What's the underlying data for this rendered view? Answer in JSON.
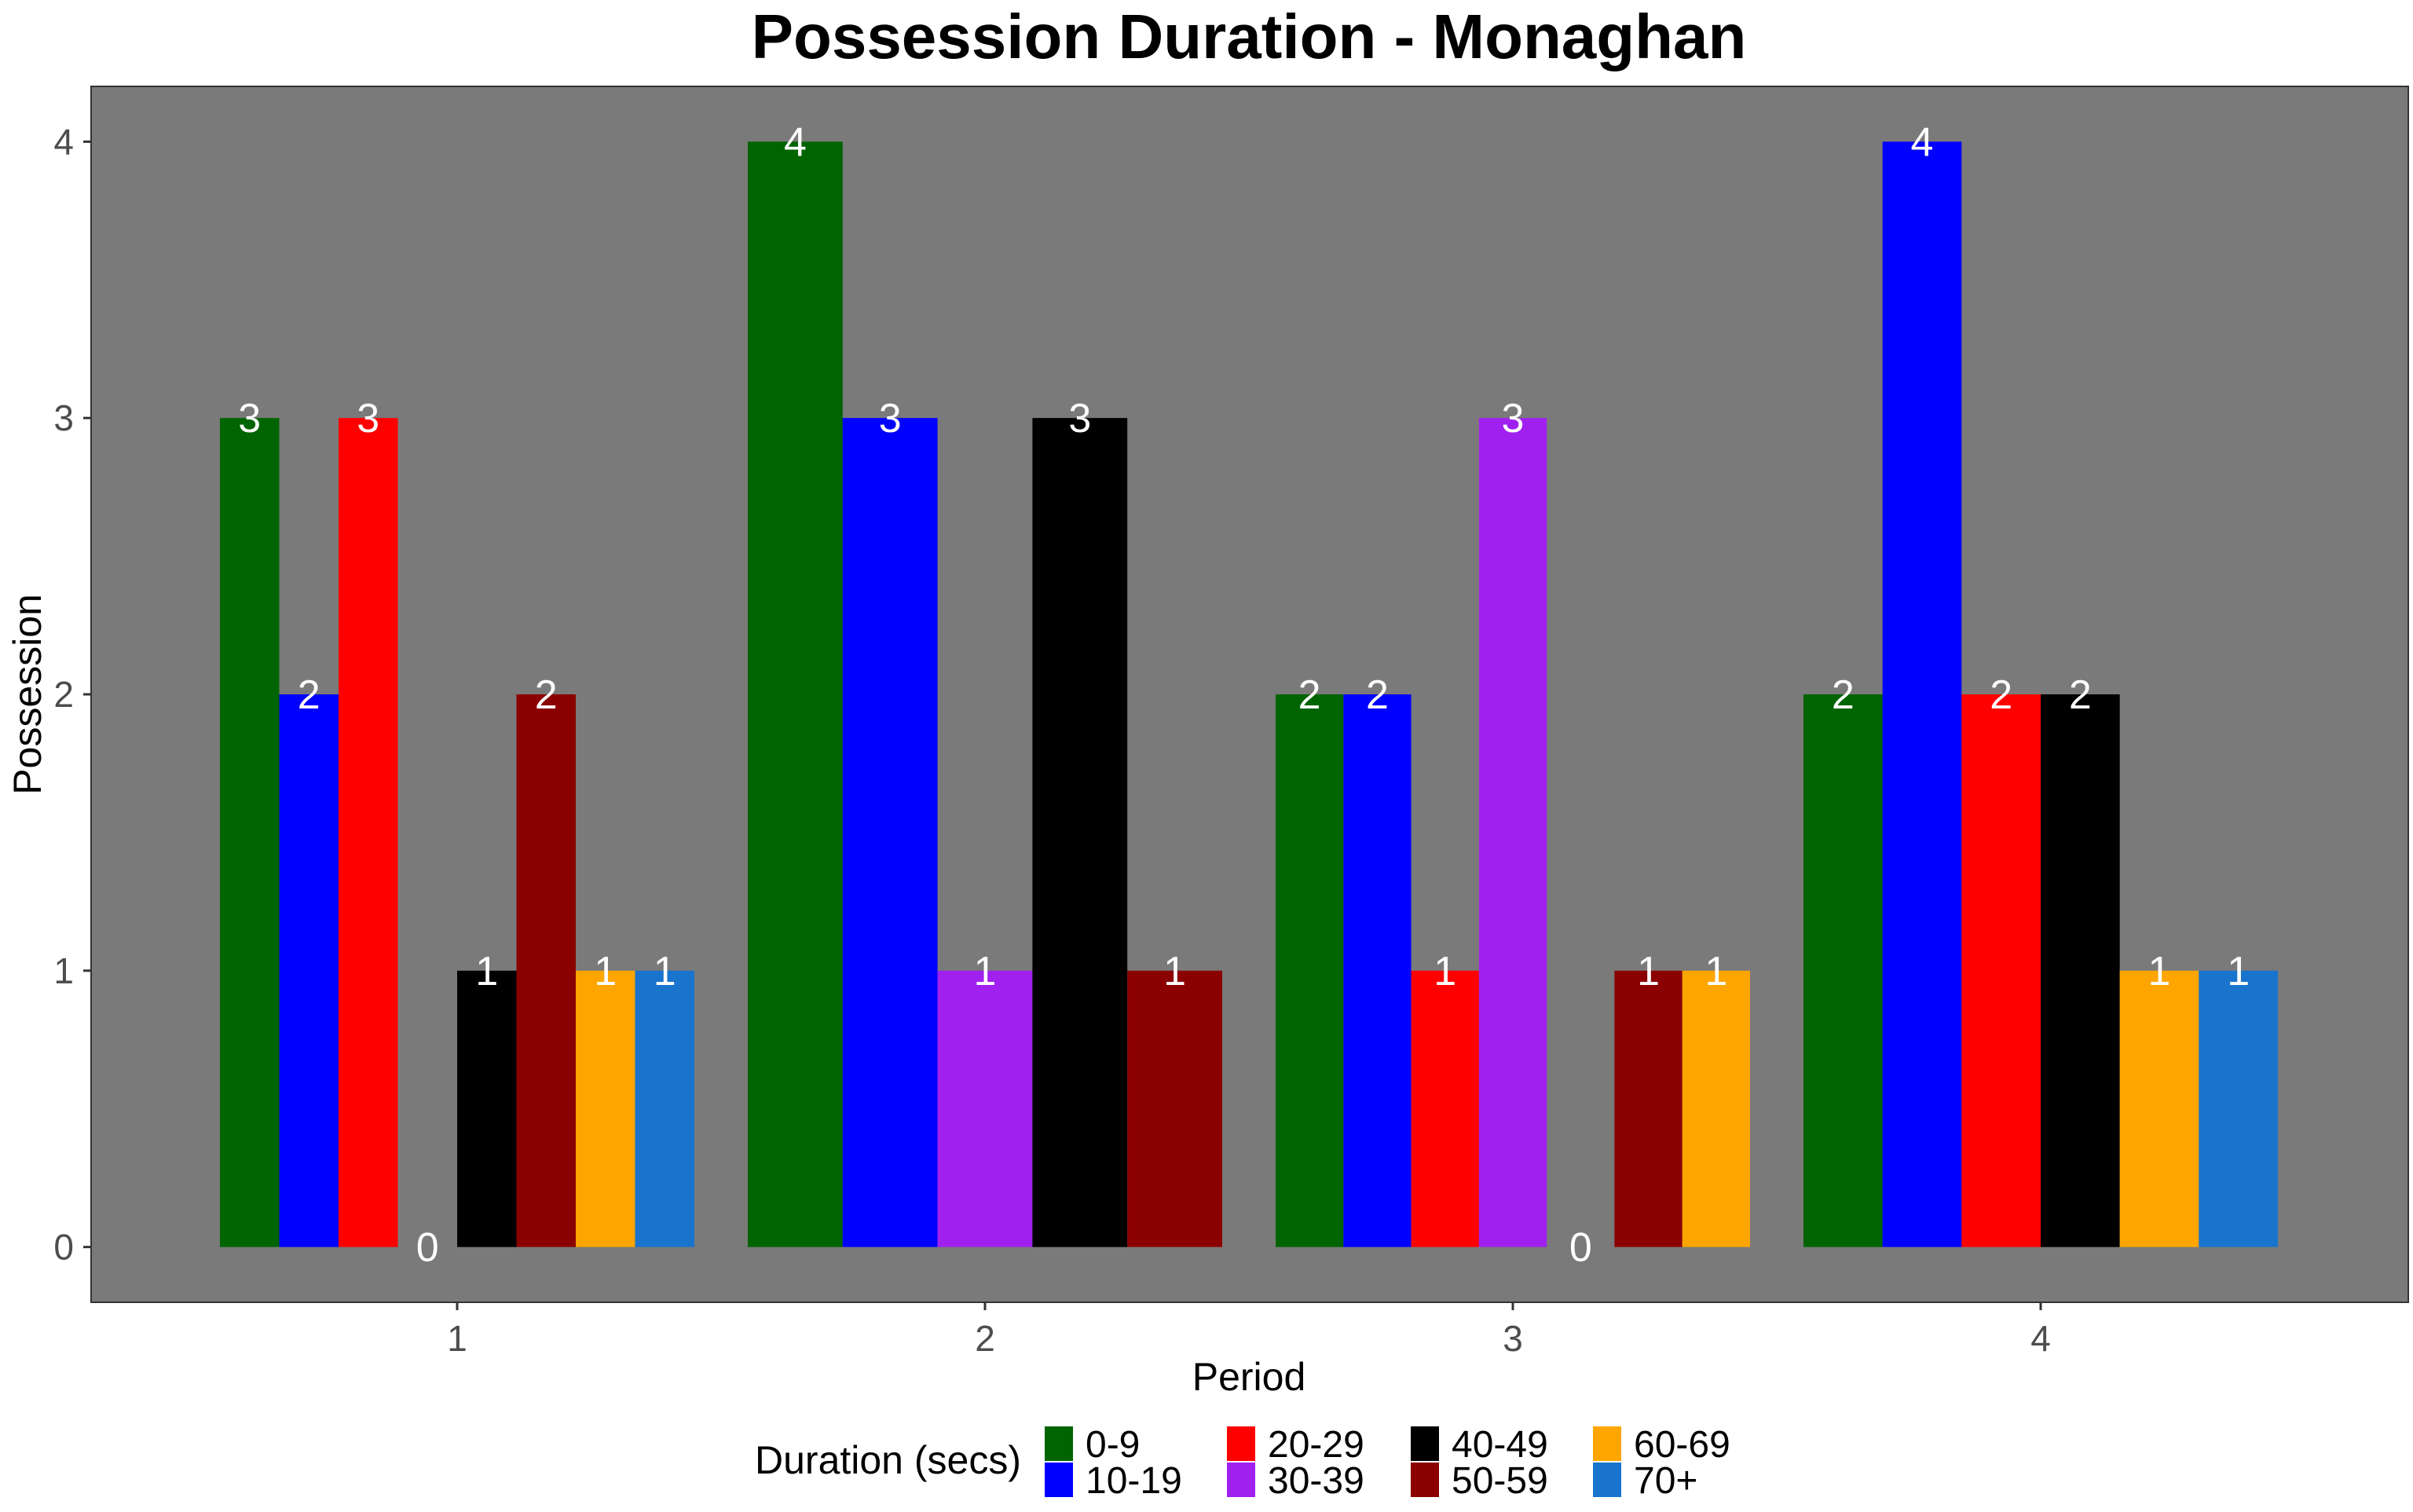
{
  "chart_data": {
    "type": "bar",
    "title": "Possession Duration - Monaghan",
    "xlabel": "Period",
    "ylabel": "Possession",
    "ylim": [
      -0.2,
      4.2
    ],
    "y_ticks": [
      0,
      1,
      2,
      3,
      4
    ],
    "grid": false,
    "legend_position": "bottom",
    "legend_title": "Duration (secs)",
    "categories": [
      "1",
      "2",
      "3",
      "4"
    ],
    "series": [
      {
        "name": "0-9",
        "color": "#006400",
        "values": [
          3,
          4,
          2,
          2
        ]
      },
      {
        "name": "10-19",
        "color": "#0000ff",
        "values": [
          2,
          3,
          2,
          4
        ]
      },
      {
        "name": "20-29",
        "color": "#ff0000",
        "values": [
          3,
          null,
          1,
          2
        ]
      },
      {
        "name": "30-39",
        "color": "#a020f0",
        "values": [
          0,
          1,
          3,
          null
        ]
      },
      {
        "name": "40-49",
        "color": "#000000",
        "values": [
          1,
          3,
          0,
          2
        ]
      },
      {
        "name": "50-59",
        "color": "#8b0000",
        "values": [
          2,
          1,
          1,
          null
        ]
      },
      {
        "name": "60-69",
        "color": "#ffa500",
        "values": [
          1,
          null,
          1,
          1
        ]
      },
      {
        "name": "70+",
        "color": "#1874cd",
        "values": [
          1,
          null,
          null,
          1
        ]
      }
    ],
    "panel_background": "#7a7a7a",
    "label_color": "#ffffff"
  }
}
